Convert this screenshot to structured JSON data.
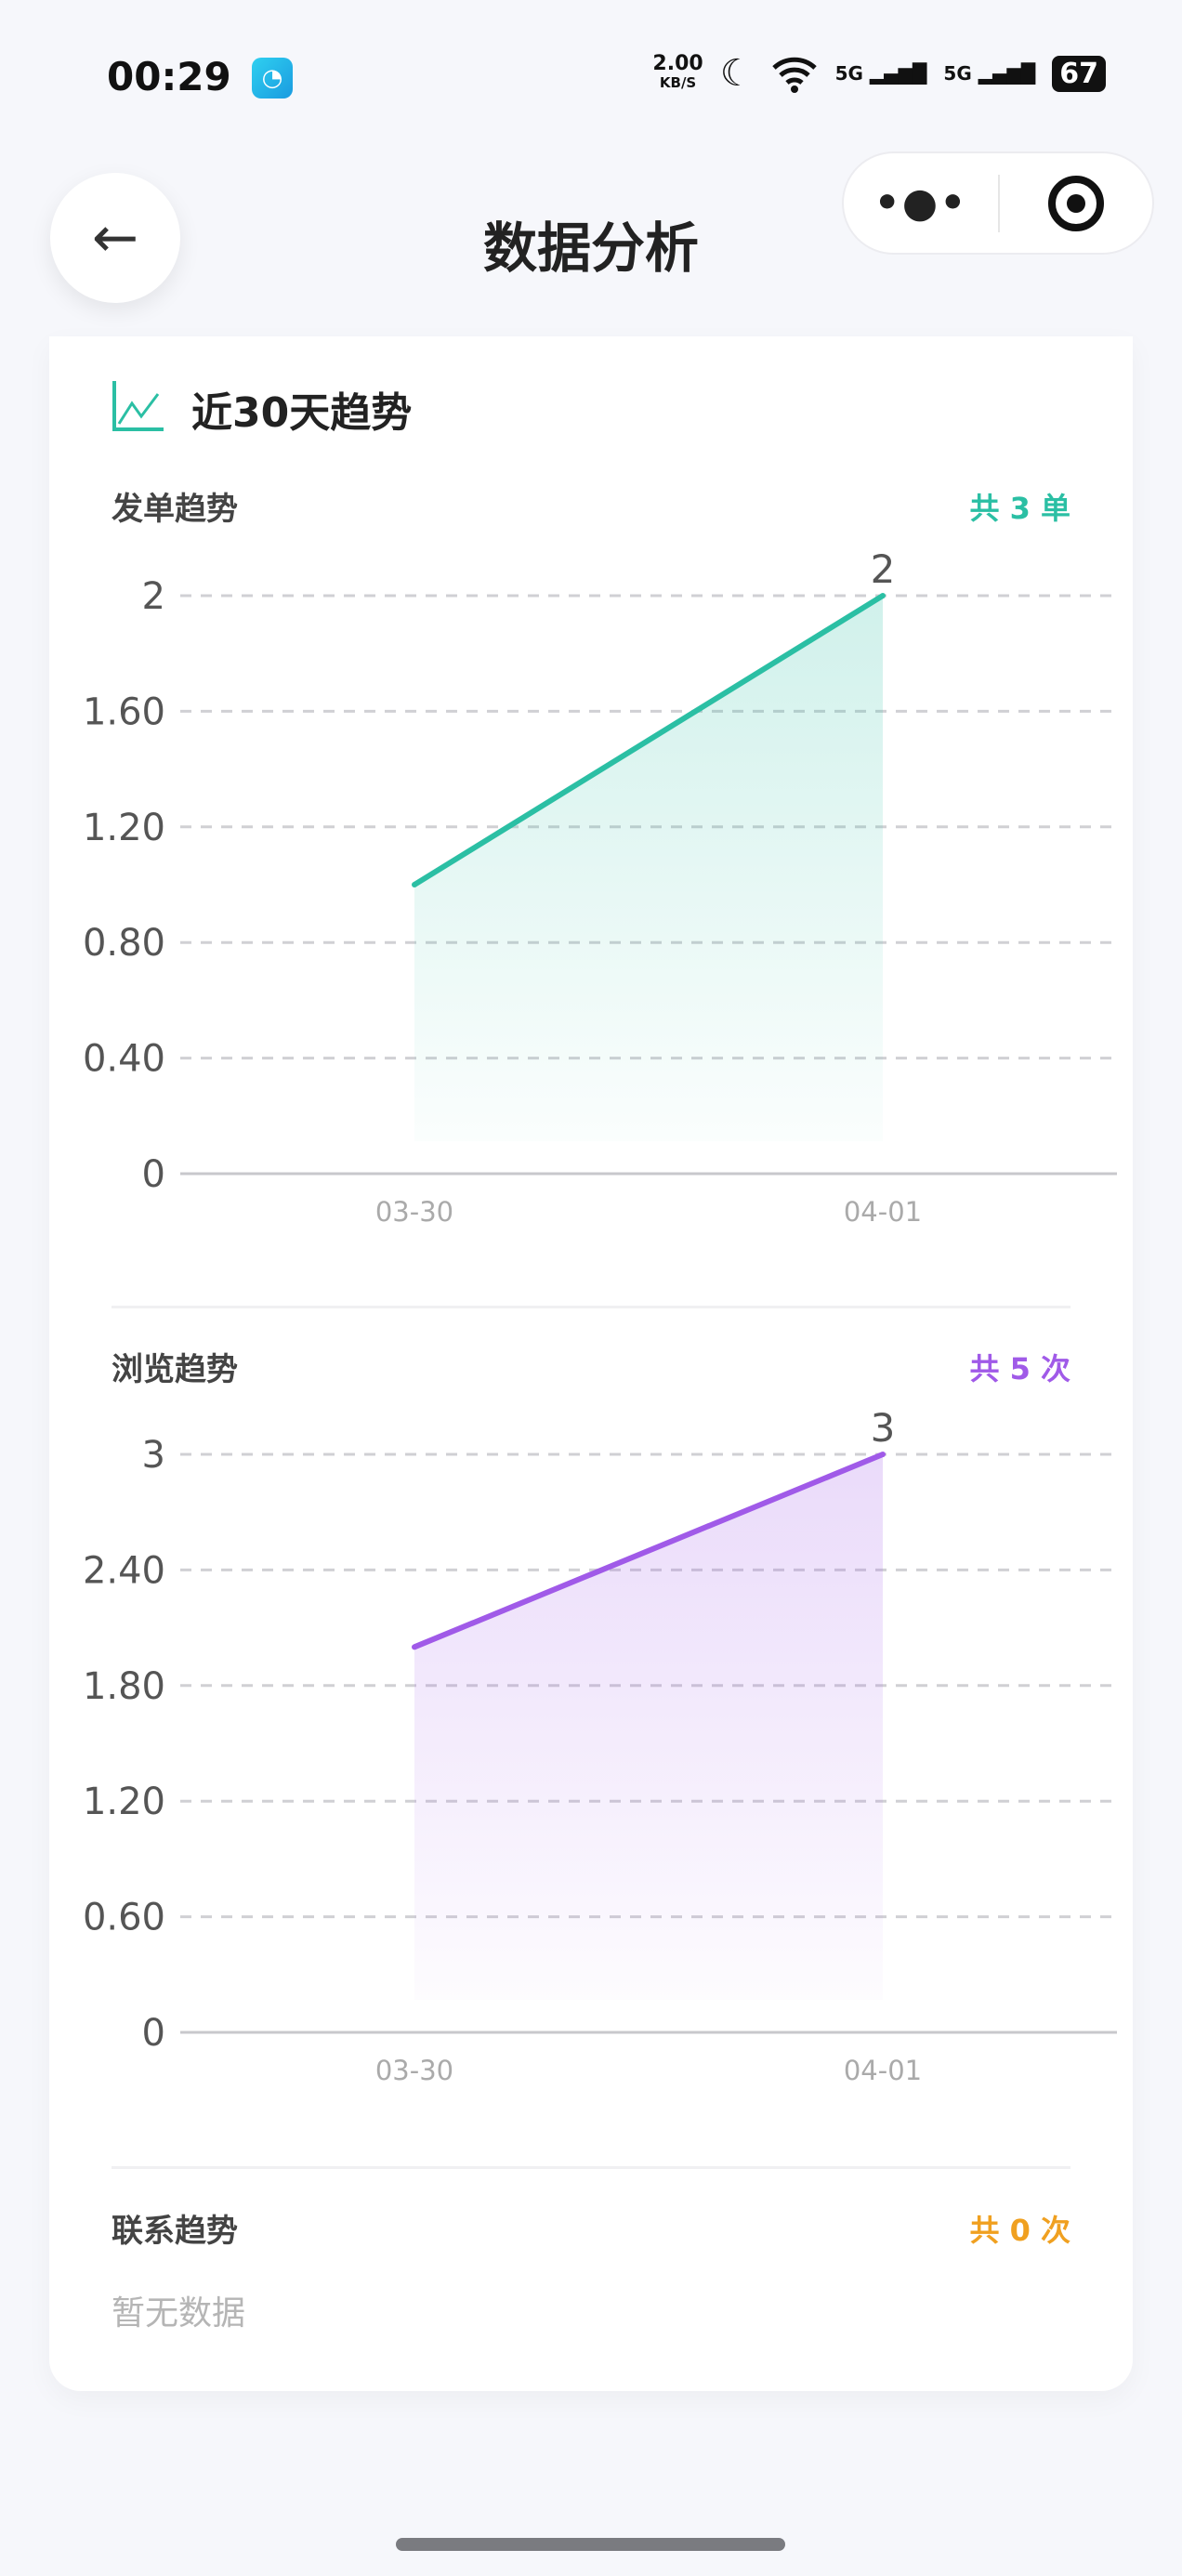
{
  "status_bar": {
    "time": "00:29",
    "speed": "2.00",
    "speed_unit": "KB/S",
    "signal1": "5G",
    "signal2": "5G",
    "battery": "67"
  },
  "header": {
    "title": "数据分析",
    "more_label": "•●•"
  },
  "section": {
    "title": "近30天趋势"
  },
  "colors": {
    "order": "#2bbfa4",
    "view": "#a05ae8",
    "contact": "#f0a020"
  },
  "chart_data": [
    {
      "type": "area",
      "title": "发单趋势",
      "total_label": "共 3 单",
      "categories": [
        "03-30",
        "04-01"
      ],
      "values": [
        1,
        2
      ],
      "data_labels": [
        "",
        "2"
      ],
      "yticks": [
        "0",
        "0.40",
        "0.80",
        "1.20",
        "1.60",
        "2"
      ],
      "ylim": [
        0,
        2
      ],
      "grid": true,
      "color": "#2bbfa4"
    },
    {
      "type": "area",
      "title": "浏览趋势",
      "total_label": "共 5 次",
      "categories": [
        "03-30",
        "04-01"
      ],
      "values": [
        2,
        3
      ],
      "data_labels": [
        "",
        "3"
      ],
      "yticks": [
        "0",
        "0.60",
        "1.20",
        "1.80",
        "2.40",
        "3"
      ],
      "ylim": [
        0,
        3
      ],
      "grid": true,
      "color": "#a05ae8"
    }
  ],
  "contact": {
    "title": "联系趋势",
    "total_label": "共 0 次",
    "empty_text": "暂无数据"
  }
}
